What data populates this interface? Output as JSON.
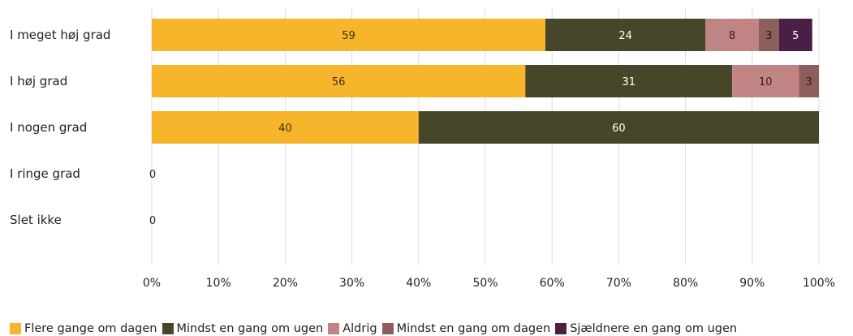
{
  "chart_data": {
    "type": "bar",
    "orientation": "horizontal",
    "stacked": true,
    "title": "",
    "xlabel": "",
    "ylabel": "",
    "xlim": [
      0,
      100
    ],
    "x_ticks": [
      "0%",
      "10%",
      "20%",
      "30%",
      "40%",
      "50%",
      "60%",
      "70%",
      "80%",
      "90%",
      "100%"
    ],
    "grid": true,
    "legend_position": "bottom",
    "categories": [
      "I meget høj grad",
      "I høj grad",
      "I nogen grad",
      "I ringe grad",
      "Slet ikke"
    ],
    "empty_label": "0",
    "series": [
      {
        "name": "Flere gange om dagen",
        "color": "#F7B52C",
        "label_color": "#3a3210",
        "values": [
          59,
          56,
          40,
          0,
          0
        ]
      },
      {
        "name": "Mindst en gang om ugen",
        "color": "#474628",
        "label_color": "#ffffff",
        "values": [
          24,
          31,
          60,
          0,
          0
        ]
      },
      {
        "name": "Aldrig",
        "color": "#C18484",
        "label_color": "#3a2020",
        "values": [
          8,
          10,
          0,
          0,
          0
        ]
      },
      {
        "name": "Mindst en gang om dagen",
        "color": "#8C5F5C",
        "label_color": "#2a1a1a",
        "values": [
          3,
          3,
          0,
          0,
          0
        ]
      },
      {
        "name": "Sjældnere en gang om ugen",
        "color": "#4A1F45",
        "label_color": "#ffffff",
        "values": [
          5,
          0,
          0,
          0,
          0
        ]
      }
    ]
  }
}
